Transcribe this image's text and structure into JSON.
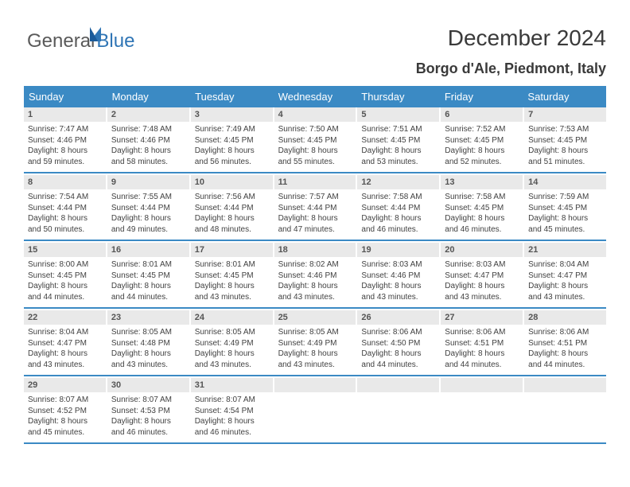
{
  "brand": {
    "word1": "General",
    "word2": "Blue"
  },
  "title": "December 2024",
  "location": "Borgo d'Ale, Piedmont, Italy",
  "colors": {
    "header_bg": "#3b8ac4",
    "header_text": "#ffffff",
    "daynum_bg": "#e9e9e9",
    "daynum_text": "#555555",
    "text": "#414141",
    "brand_gray": "#5a5a5a",
    "brand_blue": "#2f75b5",
    "background": "#ffffff"
  },
  "dayHeaders": [
    "Sunday",
    "Monday",
    "Tuesday",
    "Wednesday",
    "Thursday",
    "Friday",
    "Saturday"
  ],
  "weeks": [
    [
      {
        "num": "1",
        "sunrise": "7:47 AM",
        "sunset": "4:46 PM",
        "daylight": "8 hours and 59 minutes."
      },
      {
        "num": "2",
        "sunrise": "7:48 AM",
        "sunset": "4:46 PM",
        "daylight": "8 hours and 58 minutes."
      },
      {
        "num": "3",
        "sunrise": "7:49 AM",
        "sunset": "4:45 PM",
        "daylight": "8 hours and 56 minutes."
      },
      {
        "num": "4",
        "sunrise": "7:50 AM",
        "sunset": "4:45 PM",
        "daylight": "8 hours and 55 minutes."
      },
      {
        "num": "5",
        "sunrise": "7:51 AM",
        "sunset": "4:45 PM",
        "daylight": "8 hours and 53 minutes."
      },
      {
        "num": "6",
        "sunrise": "7:52 AM",
        "sunset": "4:45 PM",
        "daylight": "8 hours and 52 minutes."
      },
      {
        "num": "7",
        "sunrise": "7:53 AM",
        "sunset": "4:45 PM",
        "daylight": "8 hours and 51 minutes."
      }
    ],
    [
      {
        "num": "8",
        "sunrise": "7:54 AM",
        "sunset": "4:44 PM",
        "daylight": "8 hours and 50 minutes."
      },
      {
        "num": "9",
        "sunrise": "7:55 AM",
        "sunset": "4:44 PM",
        "daylight": "8 hours and 49 minutes."
      },
      {
        "num": "10",
        "sunrise": "7:56 AM",
        "sunset": "4:44 PM",
        "daylight": "8 hours and 48 minutes."
      },
      {
        "num": "11",
        "sunrise": "7:57 AM",
        "sunset": "4:44 PM",
        "daylight": "8 hours and 47 minutes."
      },
      {
        "num": "12",
        "sunrise": "7:58 AM",
        "sunset": "4:44 PM",
        "daylight": "8 hours and 46 minutes."
      },
      {
        "num": "13",
        "sunrise": "7:58 AM",
        "sunset": "4:45 PM",
        "daylight": "8 hours and 46 minutes."
      },
      {
        "num": "14",
        "sunrise": "7:59 AM",
        "sunset": "4:45 PM",
        "daylight": "8 hours and 45 minutes."
      }
    ],
    [
      {
        "num": "15",
        "sunrise": "8:00 AM",
        "sunset": "4:45 PM",
        "daylight": "8 hours and 44 minutes."
      },
      {
        "num": "16",
        "sunrise": "8:01 AM",
        "sunset": "4:45 PM",
        "daylight": "8 hours and 44 minutes."
      },
      {
        "num": "17",
        "sunrise": "8:01 AM",
        "sunset": "4:45 PM",
        "daylight": "8 hours and 43 minutes."
      },
      {
        "num": "18",
        "sunrise": "8:02 AM",
        "sunset": "4:46 PM",
        "daylight": "8 hours and 43 minutes."
      },
      {
        "num": "19",
        "sunrise": "8:03 AM",
        "sunset": "4:46 PM",
        "daylight": "8 hours and 43 minutes."
      },
      {
        "num": "20",
        "sunrise": "8:03 AM",
        "sunset": "4:47 PM",
        "daylight": "8 hours and 43 minutes."
      },
      {
        "num": "21",
        "sunrise": "8:04 AM",
        "sunset": "4:47 PM",
        "daylight": "8 hours and 43 minutes."
      }
    ],
    [
      {
        "num": "22",
        "sunrise": "8:04 AM",
        "sunset": "4:47 PM",
        "daylight": "8 hours and 43 minutes."
      },
      {
        "num": "23",
        "sunrise": "8:05 AM",
        "sunset": "4:48 PM",
        "daylight": "8 hours and 43 minutes."
      },
      {
        "num": "24",
        "sunrise": "8:05 AM",
        "sunset": "4:49 PM",
        "daylight": "8 hours and 43 minutes."
      },
      {
        "num": "25",
        "sunrise": "8:05 AM",
        "sunset": "4:49 PM",
        "daylight": "8 hours and 43 minutes."
      },
      {
        "num": "26",
        "sunrise": "8:06 AM",
        "sunset": "4:50 PM",
        "daylight": "8 hours and 44 minutes."
      },
      {
        "num": "27",
        "sunrise": "8:06 AM",
        "sunset": "4:51 PM",
        "daylight": "8 hours and 44 minutes."
      },
      {
        "num": "28",
        "sunrise": "8:06 AM",
        "sunset": "4:51 PM",
        "daylight": "8 hours and 44 minutes."
      }
    ],
    [
      {
        "num": "29",
        "sunrise": "8:07 AM",
        "sunset": "4:52 PM",
        "daylight": "8 hours and 45 minutes."
      },
      {
        "num": "30",
        "sunrise": "8:07 AM",
        "sunset": "4:53 PM",
        "daylight": "8 hours and 46 minutes."
      },
      {
        "num": "31",
        "sunrise": "8:07 AM",
        "sunset": "4:54 PM",
        "daylight": "8 hours and 46 minutes."
      },
      {
        "empty": true
      },
      {
        "empty": true
      },
      {
        "empty": true
      },
      {
        "empty": true
      }
    ]
  ]
}
